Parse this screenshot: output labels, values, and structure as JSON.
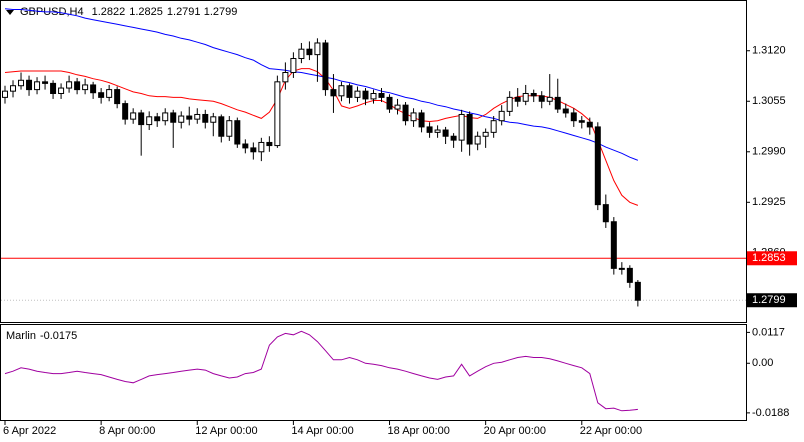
{
  "chart_data": [
    {
      "type": "candlestick",
      "title": "GBPUSD,H4",
      "open": [
        1.306,
        1.3068,
        1.3075,
        1.3082,
        1.307,
        1.308,
        1.3078,
        1.3065,
        1.3072,
        1.308,
        1.307,
        1.3076,
        1.3066,
        1.306,
        1.307,
        1.3052,
        1.3032,
        1.304,
        1.3025,
        1.3035,
        1.303,
        1.304,
        1.3028,
        1.3036,
        1.3032,
        1.3038,
        1.3028,
        1.3035,
        1.301,
        1.303,
        1.3,
        1.2995,
        1.299,
        1.3002,
        1.2998,
        1.308,
        1.3092,
        1.311,
        1.3122,
        1.3115,
        1.313,
        1.307,
        1.3062,
        1.3075,
        1.306,
        1.3068,
        1.3058,
        1.3065,
        1.306,
        1.3045,
        1.305,
        1.303,
        1.304,
        1.3022,
        1.3015,
        1.3018,
        1.301,
        1.3005,
        1.3038,
        1.3,
        1.301,
        1.3015,
        1.303,
        1.3042,
        1.306,
        1.3055,
        1.3065,
        1.3062,
        1.3055,
        1.306,
        1.3045,
        1.304,
        1.303,
        1.3028,
        1.3022,
        1.2922,
        1.29,
        1.284,
        1.284,
        1.2822
      ],
      "high": [
        1.3075,
        1.3082,
        1.3092,
        1.3088,
        1.3086,
        1.3088,
        1.3082,
        1.3078,
        1.3088,
        1.3085,
        1.3084,
        1.308,
        1.3072,
        1.3076,
        1.3074,
        1.3056,
        1.3046,
        1.3044,
        1.3042,
        1.304,
        1.3046,
        1.3044,
        1.3042,
        1.3048,
        1.3046,
        1.3044,
        1.304,
        1.3038,
        1.3036,
        1.3034,
        1.3006,
        1.3002,
        1.3008,
        1.301,
        1.3088,
        1.3105,
        1.3118,
        1.313,
        1.3132,
        1.3136,
        1.3134,
        1.309,
        1.308,
        1.3078,
        1.3074,
        1.3072,
        1.307,
        1.3072,
        1.3064,
        1.3058,
        1.3054,
        1.3046,
        1.3044,
        1.3028,
        1.3024,
        1.3022,
        1.3014,
        1.3044,
        1.3042,
        1.3016,
        1.302,
        1.3036,
        1.305,
        1.3068,
        1.3072,
        1.3076,
        1.307,
        1.3068,
        1.309,
        1.3084,
        1.3052,
        1.3046,
        1.3036,
        1.3034,
        1.3028,
        1.2935,
        1.2906,
        1.2848,
        1.2844,
        1.2825
      ],
      "low": [
        1.3052,
        1.306,
        1.307,
        1.3062,
        1.3064,
        1.307,
        1.3058,
        1.3058,
        1.3066,
        1.3064,
        1.3064,
        1.3058,
        1.3052,
        1.3055,
        1.3046,
        1.3025,
        1.3026,
        1.2985,
        1.3018,
        1.3022,
        1.3024,
        1.2995,
        1.302,
        1.3024,
        1.3026,
        1.302,
        1.301,
        1.3002,
        1.3004,
        1.2995,
        1.2988,
        1.298,
        1.2978,
        1.299,
        1.2995,
        1.307,
        1.3085,
        1.3104,
        1.3108,
        1.308,
        1.3062,
        1.304,
        1.3055,
        1.3052,
        1.3054,
        1.305,
        1.3052,
        1.3054,
        1.304,
        1.3038,
        1.3024,
        1.3022,
        1.3015,
        1.3008,
        1.3008,
        1.3,
        1.2995,
        1.299,
        1.2985,
        1.2992,
        1.2995,
        1.3008,
        1.3024,
        1.3036,
        1.3048,
        1.305,
        1.3054,
        1.3046,
        1.305,
        1.304,
        1.3034,
        1.3022,
        1.302,
        1.3012,
        1.2915,
        1.2892,
        1.2832,
        1.2832,
        1.2815,
        1.2791
      ],
      "close": [
        1.3068,
        1.3075,
        1.3082,
        1.307,
        1.308,
        1.3078,
        1.3065,
        1.3072,
        1.308,
        1.307,
        1.3076,
        1.3066,
        1.306,
        1.307,
        1.3052,
        1.3032,
        1.304,
        1.3025,
        1.3035,
        1.303,
        1.304,
        1.3028,
        1.3036,
        1.3032,
        1.3038,
        1.3028,
        1.3035,
        1.301,
        1.303,
        1.3,
        1.2995,
        1.299,
        1.3002,
        1.2998,
        1.308,
        1.3092,
        1.311,
        1.3122,
        1.3115,
        1.313,
        1.307,
        1.3062,
        1.3075,
        1.306,
        1.3068,
        1.3058,
        1.3065,
        1.306,
        1.3045,
        1.305,
        1.303,
        1.304,
        1.3022,
        1.3015,
        1.3018,
        1.301,
        1.3005,
        1.3038,
        1.3,
        1.301,
        1.3015,
        1.303,
        1.3042,
        1.306,
        1.3055,
        1.3065,
        1.3062,
        1.3055,
        1.306,
        1.3045,
        1.304,
        1.303,
        1.3028,
        1.3022,
        1.2922,
        1.29,
        1.284,
        1.284,
        1.2822,
        1.2799
      ],
      "up_color": "#ffffff",
      "down_color": "#000000",
      "overlays": [
        {
          "color": "#ff0000",
          "values": [
            1.3092,
            1.3093,
            1.3094,
            1.3094,
            1.3094,
            1.3094,
            1.3094,
            1.3094,
            1.3092,
            1.3089,
            1.3087,
            1.3084,
            1.3082,
            1.3079,
            1.3075,
            1.3071,
            1.3067,
            1.3065,
            1.3062,
            1.3061,
            1.3061,
            1.306,
            1.306,
            1.3058,
            1.3057,
            1.3056,
            1.3055,
            1.3052,
            1.3048,
            1.3044,
            1.3041,
            1.3037,
            1.3033,
            1.3041,
            1.3058,
            1.3082,
            1.3094,
            1.3097,
            1.3097,
            1.3093,
            1.3084,
            1.3069,
            1.3049,
            1.3046,
            1.3049,
            1.3053,
            1.3056,
            1.3056,
            1.3051,
            1.3044,
            1.3039,
            1.3034,
            1.303,
            1.3029,
            1.303,
            1.3033,
            1.3035,
            1.3037,
            1.3034,
            1.3033,
            1.3038,
            1.3046,
            1.3052,
            1.3057,
            1.3061,
            1.3062,
            1.3062,
            1.3062,
            1.306,
            1.3056,
            1.3051,
            1.3046,
            1.3039,
            1.303,
            1.3005,
            1.2979,
            1.2953,
            1.2934,
            1.2925,
            1.2921
          ]
        },
        {
          "color": "#0000ff",
          "values": [
            1.3174,
            1.3173,
            1.3173,
            1.3172,
            1.3171,
            1.317,
            1.317,
            1.3169,
            1.3167,
            1.3165,
            1.3162,
            1.316,
            1.3158,
            1.3156,
            1.3154,
            1.3152,
            1.315,
            1.3148,
            1.3146,
            1.3144,
            1.3141,
            1.3139,
            1.3136,
            1.3134,
            1.3131,
            1.3128,
            1.3124,
            1.3121,
            1.3118,
            1.3115,
            1.3111,
            1.3108,
            1.3102,
            1.3097,
            1.3096,
            1.3095,
            1.3093,
            1.3092,
            1.309,
            1.3088,
            1.3086,
            1.3084,
            1.3081,
            1.3079,
            1.3076,
            1.3074,
            1.3071,
            1.3068,
            1.3066,
            1.3063,
            1.306,
            1.3058,
            1.3055,
            1.3053,
            1.305,
            1.3048,
            1.3045,
            1.3043,
            1.304,
            1.3038,
            1.3035,
            1.3033,
            1.303,
            1.3028,
            1.3027,
            1.3025,
            1.3023,
            1.3022,
            1.302,
            1.3017,
            1.3014,
            1.3011,
            1.3008,
            1.3005,
            1.3001,
            1.2996,
            1.2992,
            1.2988,
            1.2983,
            1.2979
          ]
        }
      ],
      "xlim": [
        -0.5,
        92.5
      ],
      "xticks": [
        {
          "value": 0,
          "label": "6 Apr 2022"
        },
        {
          "value": 12,
          "label": "8 Apr 00:00"
        },
        {
          "value": 24,
          "label": "12 Apr 00:00"
        },
        {
          "value": 36,
          "label": "14 Apr 00:00"
        },
        {
          "value": 48,
          "label": "18 Apr 00:00"
        },
        {
          "value": 60,
          "label": "20 Apr 00:00"
        },
        {
          "value": 72,
          "label": "22 Apr 00:00"
        }
      ],
      "ylim": [
        1.2771,
        1.3184
      ],
      "yticks": [
        {
          "value": 1.312,
          "label": "1.3120"
        },
        {
          "value": 1.3055,
          "label": "1.3055"
        },
        {
          "value": 1.299,
          "label": "1.2990"
        },
        {
          "value": 1.2925,
          "label": "1.2925"
        },
        {
          "value": 1.286,
          "label": "1.2860"
        }
      ],
      "hline": {
        "value": 1.2853,
        "color": "#ff0000"
      },
      "bid": 1.2799
    },
    {
      "type": "line",
      "title": "Marlin",
      "series": [
        {
          "color": "#a000a0",
          "values": [
            -0.0039,
            -0.003,
            -0.0017,
            -0.0022,
            -0.003,
            -0.0035,
            -0.0039,
            -0.0039,
            -0.0035,
            -0.003,
            -0.0035,
            -0.0039,
            -0.0043,
            -0.0052,
            -0.0061,
            -0.0069,
            -0.0074,
            -0.0061,
            -0.0048,
            -0.0043,
            -0.0039,
            -0.0035,
            -0.003,
            -0.0026,
            -0.0022,
            -0.0026,
            -0.0039,
            -0.0048,
            -0.0056,
            -0.0052,
            -0.0039,
            -0.0035,
            -0.0022,
            0.0069,
            0.01,
            0.0113,
            0.0108,
            0.0121,
            0.0108,
            0.0082,
            0.0048,
            0.0013,
            0.0013,
            0.0022,
            0.0013,
            0,
            -0.0004,
            -0.0009,
            -0.0017,
            -0.0022,
            -0.003,
            -0.0039,
            -0.0048,
            -0.0056,
            -0.0061,
            -0.0052,
            -0.0048,
            -0.0004,
            -0.0048,
            -0.003,
            -0.0013,
            0,
            0.0004,
            0.0013,
            0.0022,
            0.0026,
            0.0022,
            0.0022,
            0.0017,
            0.0009,
            0,
            -0.0009,
            -0.0017,
            -0.0039,
            -0.015,
            -0.0172,
            -0.017,
            -0.018,
            -0.0178,
            -0.0175
          ]
        }
      ],
      "xlim": [
        -0.5,
        92.5
      ],
      "ylim": [
        -0.0215,
        0.0145
      ],
      "yticks": [
        {
          "value": 0.0117,
          "label": "0.0117"
        },
        {
          "value": 0,
          "label": "0.00"
        },
        {
          "value": -0.0188,
          "label": "-0.0188"
        }
      ]
    }
  ]
}
